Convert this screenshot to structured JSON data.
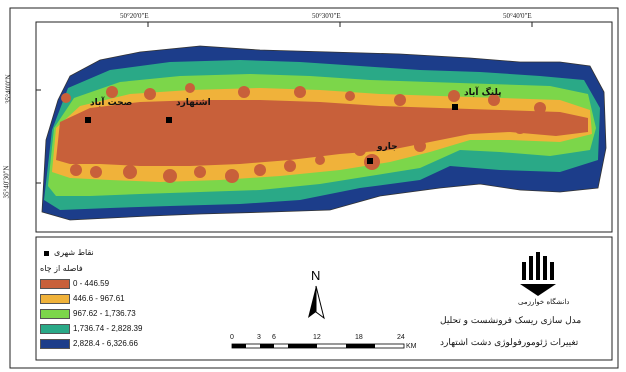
{
  "coordinates": {
    "top": [
      "50°20'0\"E",
      "50°30'0\"E",
      "50°40'0\"E"
    ],
    "left": [
      "35°40'0\"N",
      "35°40'30\"N"
    ]
  },
  "cities": [
    {
      "name": "صحت آباد"
    },
    {
      "name": "اشتهارد"
    },
    {
      "name": "پلنگ آباد"
    },
    {
      "name": "جارو"
    }
  ],
  "legend": {
    "points_label": "نقاط شهری",
    "distance_title": "فاصله از چاه",
    "classes": [
      {
        "label": "0 - 446.59",
        "color": "#c8603a"
      },
      {
        "label": "446.6 - 967.61",
        "color": "#f0b23a"
      },
      {
        "label": "967.62 - 1,736.73",
        "color": "#7cd64a"
      },
      {
        "label": "1,736.74 - 2,828.39",
        "color": "#2aa987"
      },
      {
        "label": "2,828.4 - 6,326.66",
        "color": "#1c3d8a"
      }
    ]
  },
  "north_arrow": {
    "label": "N"
  },
  "scale_bar": {
    "ticks": [
      "0",
      "3",
      "6",
      "12",
      "18",
      "24"
    ],
    "unit": "KM"
  },
  "title": {
    "line1": "مدل سازی ریسک فرونشست و تحلیل",
    "line2": "تغییرات ژئومورفولوژی دشت اشتهارد"
  },
  "logo": {
    "text": "دانشگاه خوارزمی"
  }
}
